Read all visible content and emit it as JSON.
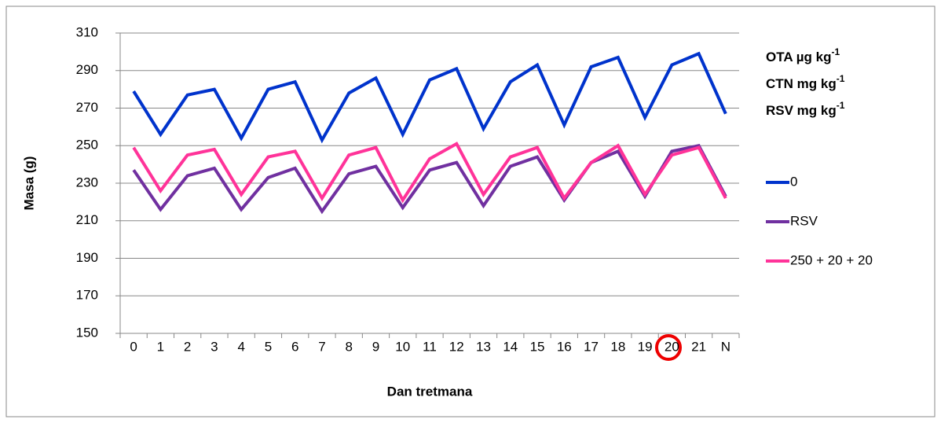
{
  "chart_data": {
    "type": "line",
    "x_label": "Dan tretmana",
    "y_label": "Masa (g)",
    "categories": [
      "0",
      "1",
      "2",
      "3",
      "4",
      "5",
      "6",
      "7",
      "8",
      "9",
      "10",
      "11",
      "12",
      "13",
      "14",
      "15",
      "16",
      "17",
      "18",
      "19",
      "20",
      "21",
      "N"
    ],
    "series": [
      {
        "name": "0",
        "color": "#0033cc",
        "values": [
          279,
          256,
          277,
          280,
          254,
          280,
          284,
          253,
          278,
          286,
          256,
          285,
          291,
          259,
          284,
          293,
          261,
          292,
          297,
          265,
          293,
          299,
          267
        ]
      },
      {
        "name": "RSV",
        "color": "#7030a0",
        "values": [
          237,
          216,
          234,
          238,
          216,
          233,
          238,
          215,
          235,
          239,
          217,
          237,
          241,
          218,
          239,
          244,
          221,
          241,
          247,
          223,
          247,
          250,
          223
        ]
      },
      {
        "name": "250 + 20 + 20",
        "color": "#ff3399",
        "values": [
          249,
          226,
          245,
          248,
          224,
          244,
          247,
          222,
          245,
          249,
          221,
          243,
          251,
          224,
          244,
          249,
          222,
          241,
          250,
          224,
          245,
          249,
          222
        ]
      }
    ],
    "annotations": [
      {
        "text": "OTA µg kg",
        "sup": "-1"
      },
      {
        "text": "CTN mg kg",
        "sup": "-1"
      },
      {
        "text": "RSV mg kg",
        "sup": "-1"
      }
    ],
    "ylim": [
      150,
      310
    ],
    "yticks": [
      150,
      170,
      190,
      210,
      230,
      250,
      270,
      290,
      310
    ],
    "grid": true
  }
}
